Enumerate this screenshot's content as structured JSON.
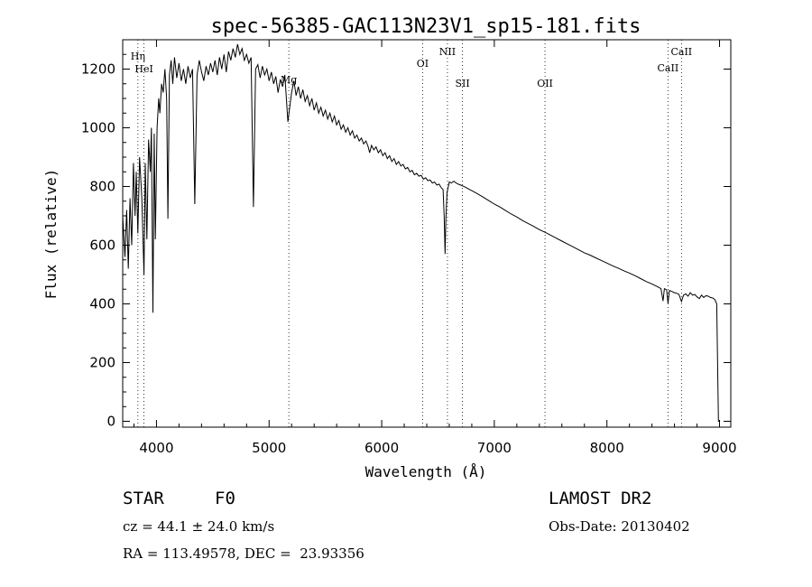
{
  "chart_data": {
    "type": "line",
    "title": "spec-56385-GAC113N23V1_sp15-181.fits",
    "xlabel": "Wavelength (Å)",
    "ylabel": "Flux (relative)",
    "xlim": [
      3700,
      9100
    ],
    "ylim": [
      -20,
      1300
    ],
    "xticks": [
      4000,
      5000,
      6000,
      7000,
      8000,
      9000
    ],
    "yticks": [
      0,
      200,
      400,
      600,
      800,
      1000,
      1200
    ],
    "grid": false,
    "series": [
      {
        "points": [
          [
            3700,
            700
          ],
          [
            3720,
            560
          ],
          [
            3735,
            720
          ],
          [
            3750,
            520
          ],
          [
            3765,
            760
          ],
          [
            3780,
            600
          ],
          [
            3795,
            880
          ],
          [
            3810,
            700
          ],
          [
            3820,
            850
          ],
          [
            3835,
            640
          ],
          [
            3850,
            900
          ],
          [
            3870,
            760
          ],
          [
            3889,
            500
          ],
          [
            3900,
            880
          ],
          [
            3915,
            620
          ],
          [
            3930,
            960
          ],
          [
            3945,
            850
          ],
          [
            3955,
            1000
          ],
          [
            3968,
            370
          ],
          [
            3980,
            980
          ],
          [
            3990,
            620
          ],
          [
            4005,
            1000
          ],
          [
            4020,
            1100
          ],
          [
            4030,
            1050
          ],
          [
            4045,
            1150
          ],
          [
            4060,
            1120
          ],
          [
            4075,
            1200
          ],
          [
            4090,
            1100
          ],
          [
            4101,
            690
          ],
          [
            4115,
            1180
          ],
          [
            4130,
            1230
          ],
          [
            4145,
            1150
          ],
          [
            4160,
            1240
          ],
          [
            4180,
            1170
          ],
          [
            4200,
            1220
          ],
          [
            4220,
            1160
          ],
          [
            4240,
            1200
          ],
          [
            4260,
            1150
          ],
          [
            4280,
            1210
          ],
          [
            4300,
            1170
          ],
          [
            4320,
            1200
          ],
          [
            4340,
            740
          ],
          [
            4360,
            1180
          ],
          [
            4380,
            1230
          ],
          [
            4400,
            1190
          ],
          [
            4420,
            1160
          ],
          [
            4440,
            1210
          ],
          [
            4460,
            1180
          ],
          [
            4480,
            1220
          ],
          [
            4500,
            1190
          ],
          [
            4520,
            1230
          ],
          [
            4540,
            1180
          ],
          [
            4560,
            1240
          ],
          [
            4580,
            1200
          ],
          [
            4600,
            1250
          ],
          [
            4620,
            1190
          ],
          [
            4640,
            1260
          ],
          [
            4660,
            1230
          ],
          [
            4680,
            1270
          ],
          [
            4700,
            1240
          ],
          [
            4720,
            1285
          ],
          [
            4740,
            1250
          ],
          [
            4760,
            1270
          ],
          [
            4780,
            1230
          ],
          [
            4800,
            1250
          ],
          [
            4820,
            1220
          ],
          [
            4840,
            1240
          ],
          [
            4861,
            730
          ],
          [
            4880,
            1200
          ],
          [
            4900,
            1215
          ],
          [
            4920,
            1170
          ],
          [
            4940,
            1210
          ],
          [
            4960,
            1180
          ],
          [
            4980,
            1200
          ],
          [
            5000,
            1160
          ],
          [
            5020,
            1190
          ],
          [
            5040,
            1150
          ],
          [
            5060,
            1175
          ],
          [
            5080,
            1120
          ],
          [
            5100,
            1165
          ],
          [
            5120,
            1140
          ],
          [
            5140,
            1180
          ],
          [
            5167,
            1020
          ],
          [
            5183,
            1070
          ],
          [
            5200,
            1120
          ],
          [
            5220,
            1160
          ],
          [
            5240,
            1110
          ],
          [
            5260,
            1140
          ],
          [
            5280,
            1100
          ],
          [
            5300,
            1130
          ],
          [
            5320,
            1090
          ],
          [
            5340,
            1110
          ],
          [
            5360,
            1075
          ],
          [
            5380,
            1100
          ],
          [
            5400,
            1060
          ],
          [
            5420,
            1085
          ],
          [
            5440,
            1050
          ],
          [
            5460,
            1070
          ],
          [
            5480,
            1040
          ],
          [
            5500,
            1060
          ],
          [
            5520,
            1030
          ],
          [
            5540,
            1050
          ],
          [
            5560,
            1020
          ],
          [
            5580,
            1040
          ],
          [
            5600,
            1010
          ],
          [
            5620,
            1025
          ],
          [
            5640,
            995
          ],
          [
            5660,
            1010
          ],
          [
            5680,
            985
          ],
          [
            5700,
            1000
          ],
          [
            5720,
            975
          ],
          [
            5740,
            990
          ],
          [
            5760,
            965
          ],
          [
            5780,
            975
          ],
          [
            5800,
            955
          ],
          [
            5820,
            965
          ],
          [
            5840,
            945
          ],
          [
            5860,
            955
          ],
          [
            5880,
            935
          ],
          [
            5893,
            915
          ],
          [
            5910,
            940
          ],
          [
            5930,
            925
          ],
          [
            5950,
            935
          ],
          [
            5970,
            915
          ],
          [
            5990,
            925
          ],
          [
            6010,
            905
          ],
          [
            6030,
            915
          ],
          [
            6050,
            895
          ],
          [
            6070,
            905
          ],
          [
            6090,
            885
          ],
          [
            6110,
            895
          ],
          [
            6130,
            875
          ],
          [
            6150,
            885
          ],
          [
            6170,
            870
          ],
          [
            6190,
            875
          ],
          [
            6210,
            860
          ],
          [
            6230,
            865
          ],
          [
            6250,
            850
          ],
          [
            6270,
            855
          ],
          [
            6290,
            840
          ],
          [
            6310,
            845
          ],
          [
            6330,
            835
          ],
          [
            6350,
            838
          ],
          [
            6370,
            825
          ],
          [
            6390,
            830
          ],
          [
            6410,
            820
          ],
          [
            6430,
            822
          ],
          [
            6450,
            812
          ],
          [
            6470,
            815
          ],
          [
            6490,
            805
          ],
          [
            6510,
            808
          ],
          [
            6530,
            795
          ],
          [
            6545,
            790
          ],
          [
            6555,
            700
          ],
          [
            6563,
            570
          ],
          [
            6570,
            690
          ],
          [
            6580,
            780
          ],
          [
            6600,
            815
          ],
          [
            6620,
            812
          ],
          [
            6640,
            818
          ],
          [
            6660,
            812
          ],
          [
            6680,
            808
          ],
          [
            6700,
            805
          ],
          [
            6720,
            802
          ],
          [
            6740,
            798
          ],
          [
            6760,
            794
          ],
          [
            6780,
            790
          ],
          [
            6800,
            786
          ],
          [
            6850,
            775
          ],
          [
            6900,
            764
          ],
          [
            6950,
            752
          ],
          [
            7000,
            740
          ],
          [
            7050,
            730
          ],
          [
            7100,
            718
          ],
          [
            7150,
            706
          ],
          [
            7200,
            696
          ],
          [
            7250,
            684
          ],
          [
            7300,
            674
          ],
          [
            7350,
            664
          ],
          [
            7400,
            653
          ],
          [
            7450,
            644
          ],
          [
            7500,
            634
          ],
          [
            7550,
            624
          ],
          [
            7600,
            614
          ],
          [
            7650,
            604
          ],
          [
            7700,
            594
          ],
          [
            7750,
            584
          ],
          [
            7800,
            574
          ],
          [
            7850,
            566
          ],
          [
            7900,
            557
          ],
          [
            7950,
            548
          ],
          [
            8000,
            539
          ],
          [
            8050,
            530
          ],
          [
            8100,
            522
          ],
          [
            8150,
            513
          ],
          [
            8200,
            505
          ],
          [
            8250,
            496
          ],
          [
            8300,
            486
          ],
          [
            8350,
            476
          ],
          [
            8400,
            468
          ],
          [
            8450,
            458
          ],
          [
            8480,
            452
          ],
          [
            8498,
            410
          ],
          [
            8510,
            452
          ],
          [
            8530,
            448
          ],
          [
            8542,
            402
          ],
          [
            8555,
            446
          ],
          [
            8580,
            442
          ],
          [
            8600,
            438
          ],
          [
            8620,
            436
          ],
          [
            8640,
            432
          ],
          [
            8662,
            408
          ],
          [
            8680,
            430
          ],
          [
            8700,
            434
          ],
          [
            8720,
            426
          ],
          [
            8740,
            438
          ],
          [
            8760,
            430
          ],
          [
            8780,
            432
          ],
          [
            8800,
            424
          ],
          [
            8820,
            418
          ],
          [
            8840,
            430
          ],
          [
            8860,
            422
          ],
          [
            8880,
            428
          ],
          [
            8900,
            426
          ],
          [
            8920,
            422
          ],
          [
            8940,
            420
          ],
          [
            8960,
            414
          ],
          [
            8975,
            400
          ],
          [
            8990,
            0
          ],
          [
            9000,
            0
          ]
        ]
      }
    ],
    "lines": [
      {
        "label": "Hη",
        "wavelength": 3835
      },
      {
        "label": "HeI",
        "wavelength": 3889
      },
      {
        "label": "Mg",
        "wavelength": 5175
      },
      {
        "label": "OI",
        "wavelength": 6363
      },
      {
        "label": "NII",
        "wavelength": 6584
      },
      {
        "label": "SII",
        "wavelength": 6717
      },
      {
        "label": "OII",
        "wavelength": 7450
      },
      {
        "label": "CaII",
        "wavelength": 8542
      },
      {
        "label": "CaII",
        "wavelength": 8662
      }
    ]
  },
  "info": {
    "class_label": "STAR",
    "subclass": "F0",
    "survey": "LAMOST DR2",
    "cz": "cz = 44.1 ± 24.0 km/s",
    "obs_date": "Obs-Date: 20130402",
    "radec": "RA = 113.49578, DEC =  23.93356"
  }
}
